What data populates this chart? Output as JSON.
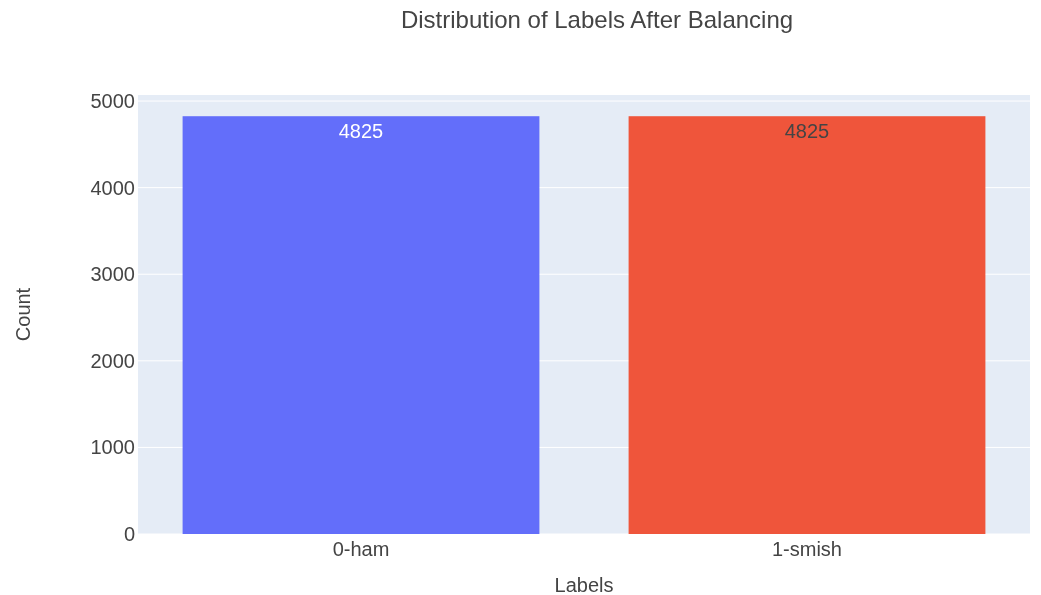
{
  "chart_data": {
    "type": "bar",
    "title": "Distribution of Labels After Balancing",
    "xlabel": "Labels",
    "ylabel": "Count",
    "categories": [
      "0-ham",
      "1-smish"
    ],
    "values": [
      4825,
      4825
    ],
    "colors": [
      "#636efa",
      "#ef553b"
    ],
    "ylim": [
      0,
      5070
    ],
    "yticks": [
      0,
      1000,
      2000,
      3000,
      4000,
      5000
    ],
    "grid": "y",
    "data_labels": true
  }
}
